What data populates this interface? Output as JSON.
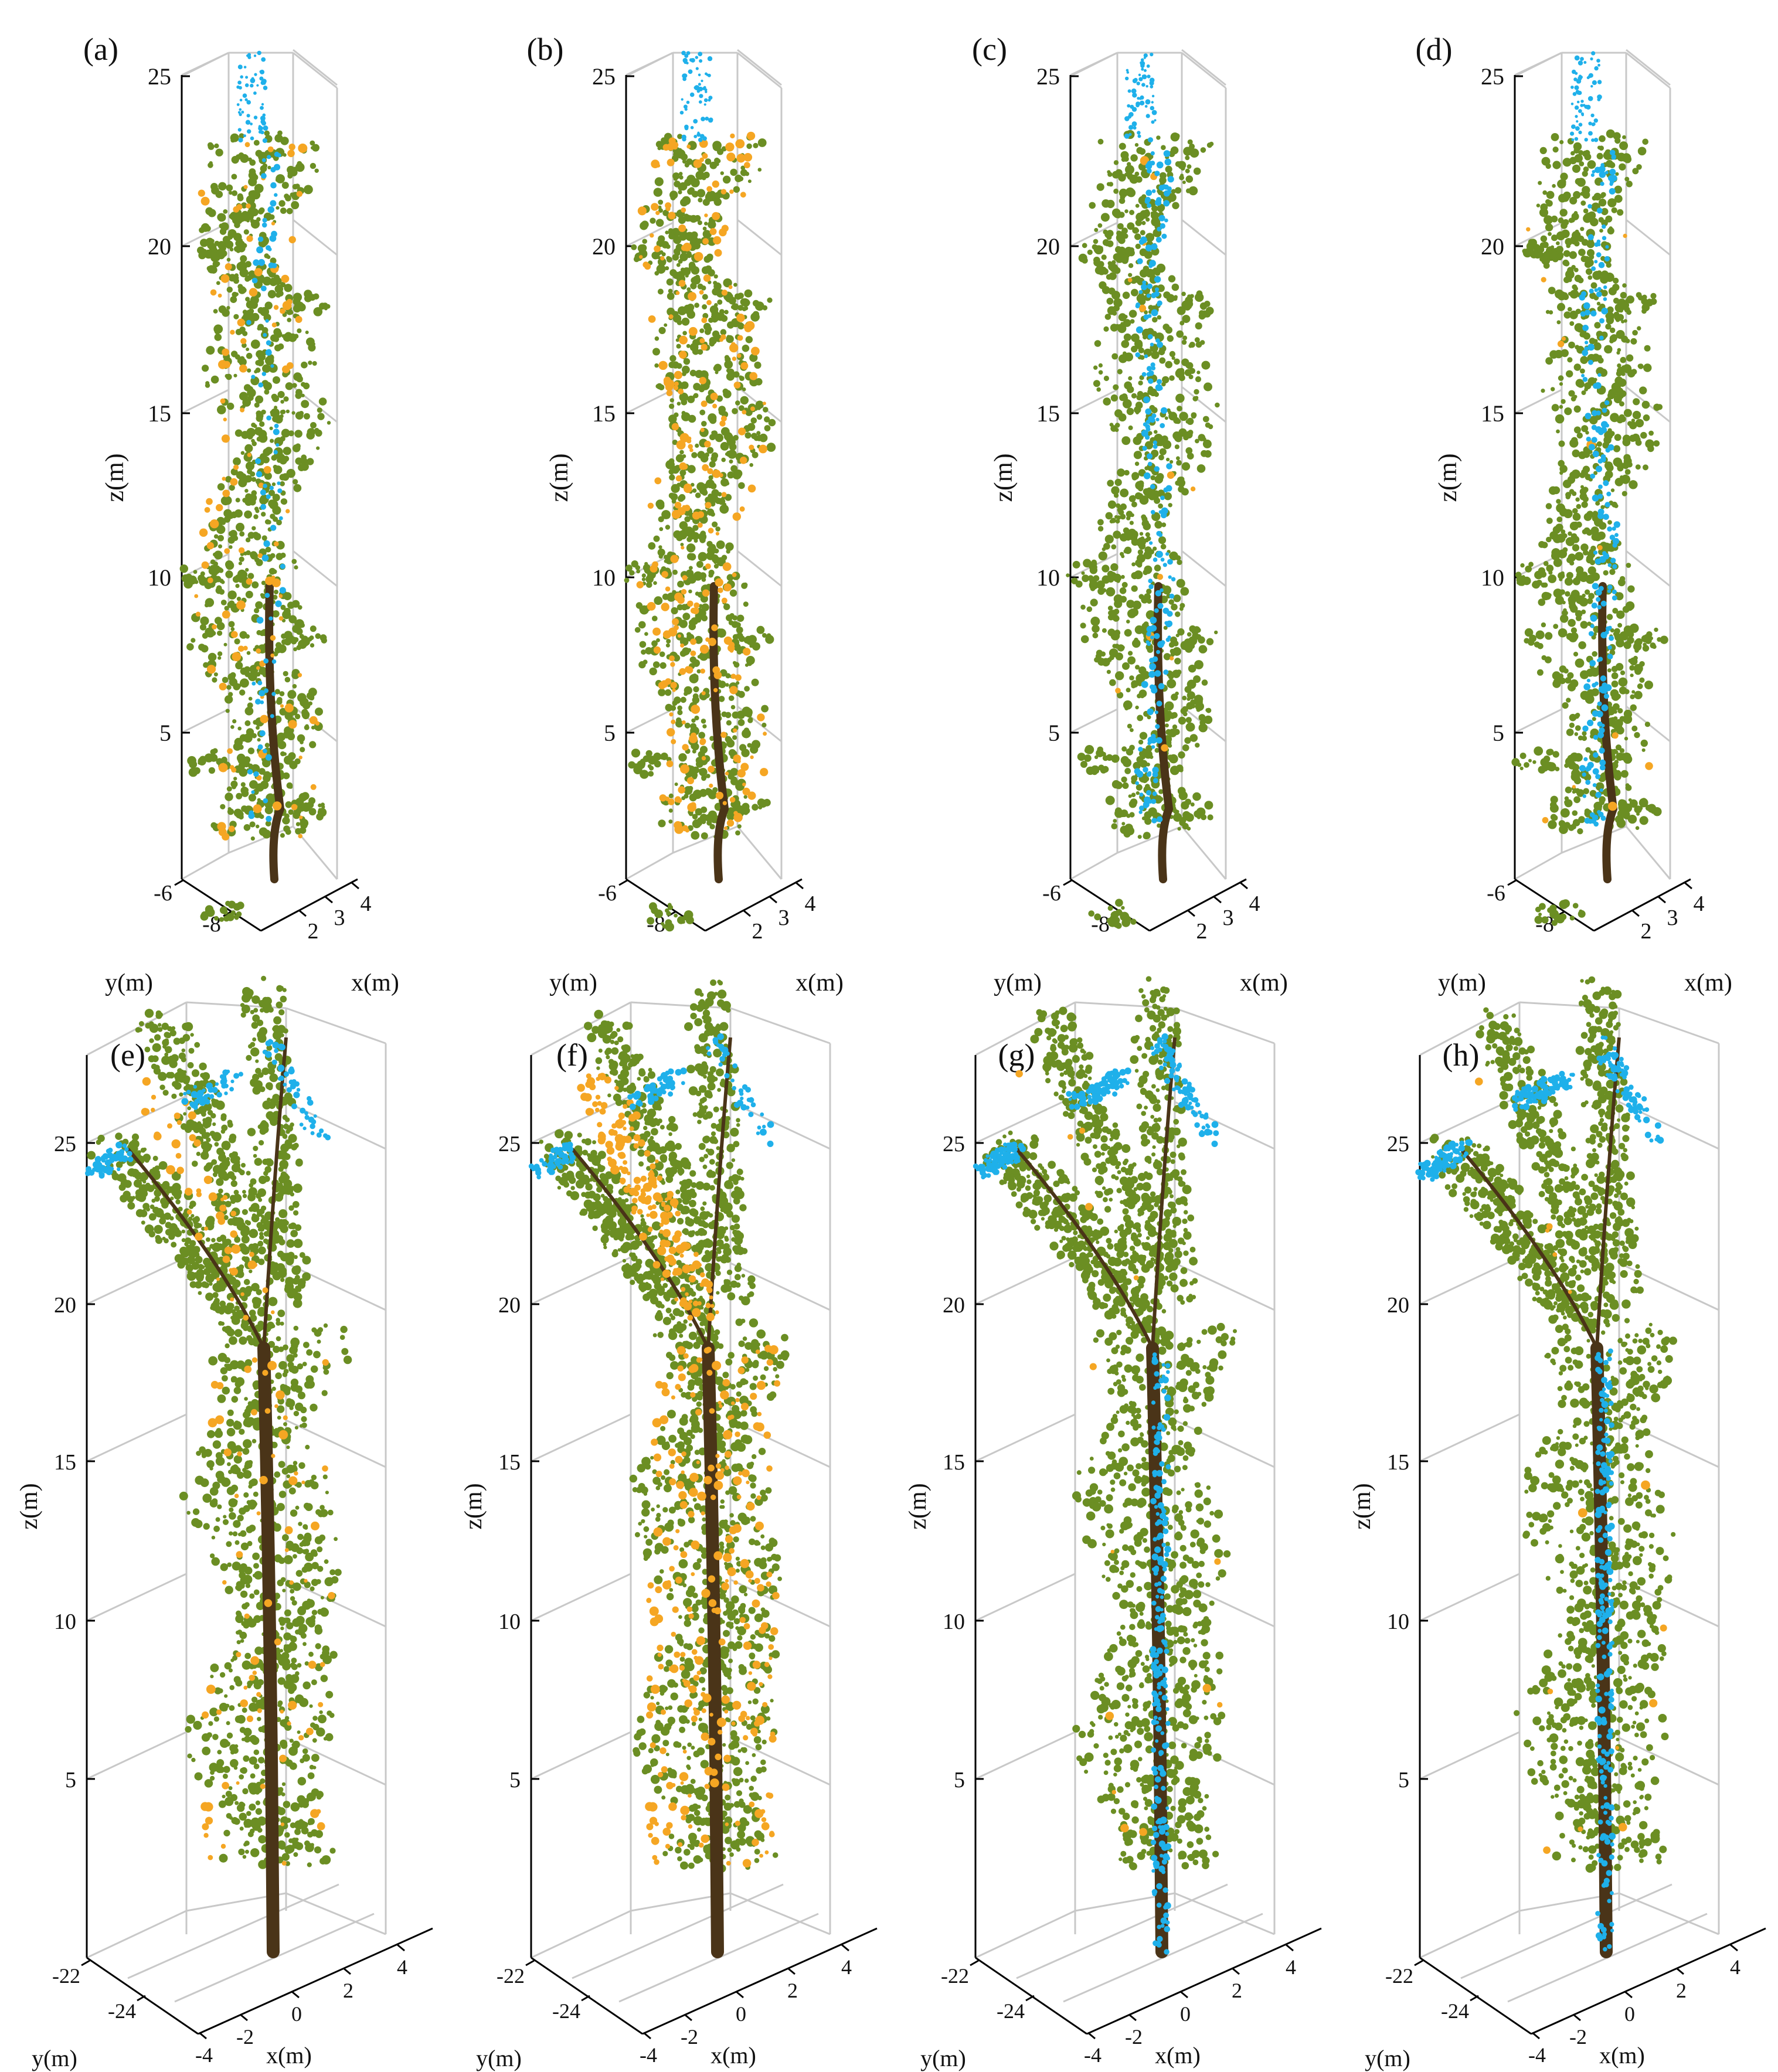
{
  "colors": {
    "leaf": "#6b8e23",
    "wood": "#4a3418",
    "highlight_blue": "#1fb0ea",
    "highlight_orange": "#f5a623",
    "axis": "#000000",
    "grid": "#c8c8c8",
    "background": "#ffffff"
  },
  "chart_data": [
    {
      "type": "scatter",
      "panel_label": "(a)",
      "xlabel": "x(m)",
      "ylabel": "y(m)",
      "zlabel": "z(m)",
      "z_ticks": [
        "5",
        "10",
        "15",
        "20",
        "25"
      ],
      "x_ticks": [
        "2",
        "3",
        "4"
      ],
      "y_ticks": [
        "-6",
        "-8"
      ],
      "zlim": [
        0,
        25
      ],
      "grid": true,
      "tree": "tall slender tree",
      "series_colors": [
        "leaf",
        "wood",
        "highlight_orange",
        "highlight_blue"
      ],
      "highlights": {
        "orange": "scattered",
        "blue": "stem and top"
      }
    },
    {
      "type": "scatter",
      "panel_label": "(b)",
      "xlabel": "x(m)",
      "ylabel": "y(m)",
      "zlabel": "z(m)",
      "z_ticks": [
        "5",
        "10",
        "15",
        "20",
        "25"
      ],
      "x_ticks": [
        "2",
        "3",
        "4"
      ],
      "y_ticks": [
        "-6",
        "-8"
      ],
      "zlim": [
        0,
        25
      ],
      "grid": true,
      "tree": "tall slender tree",
      "series_colors": [
        "leaf",
        "wood",
        "highlight_orange",
        "highlight_blue"
      ],
      "highlights": {
        "orange": "dense",
        "blue": "top only"
      }
    },
    {
      "type": "scatter",
      "panel_label": "(c)",
      "xlabel": "x(m)",
      "ylabel": "y(m)",
      "zlabel": "z(m)",
      "z_ticks": [
        "5",
        "10",
        "15",
        "20",
        "25"
      ],
      "x_ticks": [
        "2",
        "3",
        "4"
      ],
      "y_ticks": [
        "-6",
        "-8"
      ],
      "zlim": [
        0,
        25
      ],
      "grid": true,
      "tree": "tall slender tree",
      "series_colors": [
        "leaf",
        "wood",
        "highlight_blue"
      ],
      "highlights": {
        "orange": "sparse",
        "blue": "stem"
      }
    },
    {
      "type": "scatter",
      "panel_label": "(d)",
      "xlabel": "x(m)",
      "ylabel": "y(m)",
      "zlabel": "z(m)",
      "z_ticks": [
        "5",
        "10",
        "15",
        "20",
        "25"
      ],
      "x_ticks": [
        "2",
        "3",
        "4"
      ],
      "y_ticks": [
        "-6",
        "-8"
      ],
      "zlim": [
        0,
        25
      ],
      "grid": true,
      "tree": "tall slender tree",
      "series_colors": [
        "leaf",
        "wood",
        "highlight_blue"
      ],
      "highlights": {
        "orange": "sparse",
        "blue": "stem"
      }
    },
    {
      "type": "scatter",
      "panel_label": "(e)",
      "xlabel": "x(m)",
      "ylabel": "y(m)",
      "zlabel": "z(m)",
      "z_ticks": [
        "5",
        "10",
        "15",
        "20",
        "25"
      ],
      "x_ticks": [
        "-4",
        "-2",
        "0",
        "2",
        "4"
      ],
      "y_ticks": [
        "-22",
        "-24"
      ],
      "zlim": [
        0,
        26
      ],
      "grid": true,
      "tree": "tree with leaning branches",
      "series_colors": [
        "leaf",
        "wood",
        "highlight_orange",
        "highlight_blue"
      ],
      "highlights": {
        "orange": "scattered",
        "blue": "branches"
      }
    },
    {
      "type": "scatter",
      "panel_label": "(f)",
      "xlabel": "x(m)",
      "ylabel": "y(m)",
      "zlabel": "z(m)",
      "z_ticks": [
        "5",
        "10",
        "15",
        "20",
        "25"
      ],
      "x_ticks": [
        "-4",
        "-2",
        "0",
        "2",
        "4"
      ],
      "y_ticks": [
        "-22",
        "-24"
      ],
      "zlim": [
        0,
        26
      ],
      "grid": true,
      "tree": "tree with leaning branches",
      "series_colors": [
        "leaf",
        "wood",
        "highlight_orange",
        "highlight_blue"
      ],
      "highlights": {
        "orange": "dense",
        "blue": "branches"
      }
    },
    {
      "type": "scatter",
      "panel_label": "(g)",
      "xlabel": "x(m)",
      "ylabel": "y(m)",
      "zlabel": "z(m)",
      "z_ticks": [
        "5",
        "10",
        "15",
        "20",
        "25"
      ],
      "x_ticks": [
        "-4",
        "-2",
        "0",
        "2",
        "4"
      ],
      "y_ticks": [
        "-22",
        "-24"
      ],
      "zlim": [
        0,
        26
      ],
      "grid": true,
      "tree": "tree with leaning branches",
      "series_colors": [
        "leaf",
        "wood",
        "highlight_blue"
      ],
      "highlights": {
        "orange": "sparse",
        "blue": "stem and branches"
      }
    },
    {
      "type": "scatter",
      "panel_label": "(h)",
      "xlabel": "x(m)",
      "ylabel": "y(m)",
      "zlabel": "z(m)",
      "z_ticks": [
        "5",
        "10",
        "15",
        "20",
        "25"
      ],
      "x_ticks": [
        "-4",
        "-2",
        "0",
        "2",
        "4"
      ],
      "y_ticks": [
        "-22",
        "-24"
      ],
      "zlim": [
        0,
        26
      ],
      "grid": true,
      "tree": "tree with leaning branches",
      "series_colors": [
        "leaf",
        "wood",
        "highlight_blue"
      ],
      "highlights": {
        "orange": "sparse",
        "blue": "stem and branches"
      }
    }
  ]
}
